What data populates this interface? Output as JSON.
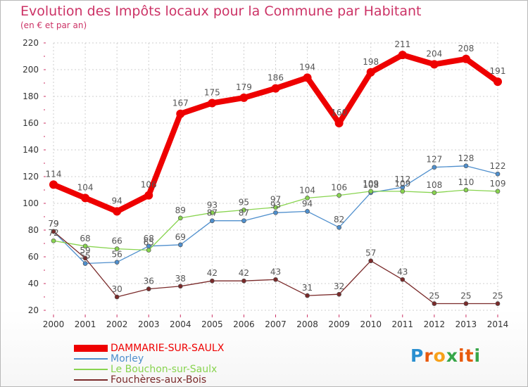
{
  "title": "Evolution des Impôts locaux pour la Commune par Habitant",
  "subtitle": "(en € et par an)",
  "brand": {
    "text": "Proxiti",
    "letters": [
      "P",
      "r",
      "o",
      "x",
      "i",
      "t",
      "i"
    ],
    "colors": [
      "#2a8fd0",
      "#e8590c",
      "#f7a11a",
      "#37a649",
      "#e8590c",
      "#e8590c",
      "#37a649"
    ]
  },
  "chart_data": {
    "type": "line",
    "title": "Evolution des Impôts locaux pour la Commune par Habitant",
    "subtitle": "(en € et par an)",
    "xlabel": "",
    "ylabel": "",
    "x": [
      "2000",
      "2001",
      "2002",
      "2003",
      "2004",
      "2005",
      "2006",
      "2007",
      "2008",
      "2009",
      "2010",
      "2011",
      "2012",
      "2013",
      "2014"
    ],
    "yticks": [
      "20",
      "40",
      "60",
      "80",
      "100",
      "120",
      "140",
      "160",
      "180",
      "200",
      "220"
    ],
    "ylim": [
      20,
      220
    ],
    "grid": true,
    "legend_position": "bottom-left",
    "series": [
      {
        "name": "DAMMARIE-SUR-SAULX",
        "color": "#ee0000",
        "bold": true,
        "values": [
          114,
          104,
          94,
          106,
          167,
          175,
          179,
          186,
          194,
          160,
          198,
          211,
          204,
          208,
          191
        ],
        "labels": [
          "114",
          "104",
          "94",
          "106",
          "167",
          "175",
          "179",
          "186",
          "194",
          "160",
          "198",
          "211",
          "204",
          "208",
          "191"
        ]
      },
      {
        "name": "Morley",
        "color": "#4f8fcd",
        "bold": false,
        "values": [
          79,
          55,
          56,
          68,
          69,
          87,
          87,
          93,
          94,
          82,
          108,
          112,
          127,
          128,
          122
        ],
        "labels": [
          "79",
          "55",
          "56",
          "68",
          "69",
          "87",
          "87",
          "93",
          "94",
          "82",
          "108",
          "112",
          "127",
          "128",
          "122"
        ]
      },
      {
        "name": "Le Bouchon-sur-Saulx",
        "color": "#88d44f",
        "bold": false,
        "values": [
          72,
          68,
          66,
          65,
          89,
          93,
          95,
          97,
          104,
          106,
          109,
          109,
          108,
          110,
          109
        ],
        "labels": [
          "72",
          "68",
          "66",
          "65",
          "89",
          "93",
          "95",
          "97",
          "104",
          "106",
          "109",
          "109",
          "108",
          "110",
          "109"
        ]
      },
      {
        "name": "Fouchères-aux-Bois",
        "color": "#7a2a2a",
        "bold": false,
        "values": [
          79,
          59,
          30,
          36,
          38,
          42,
          42,
          43,
          31,
          32,
          57,
          43,
          25,
          25,
          25
        ],
        "labels": [
          "79",
          "59",
          "30",
          "36",
          "38",
          "42",
          "42",
          "43",
          "31",
          "32",
          "57",
          "43",
          "25",
          "25",
          "25"
        ]
      }
    ]
  }
}
